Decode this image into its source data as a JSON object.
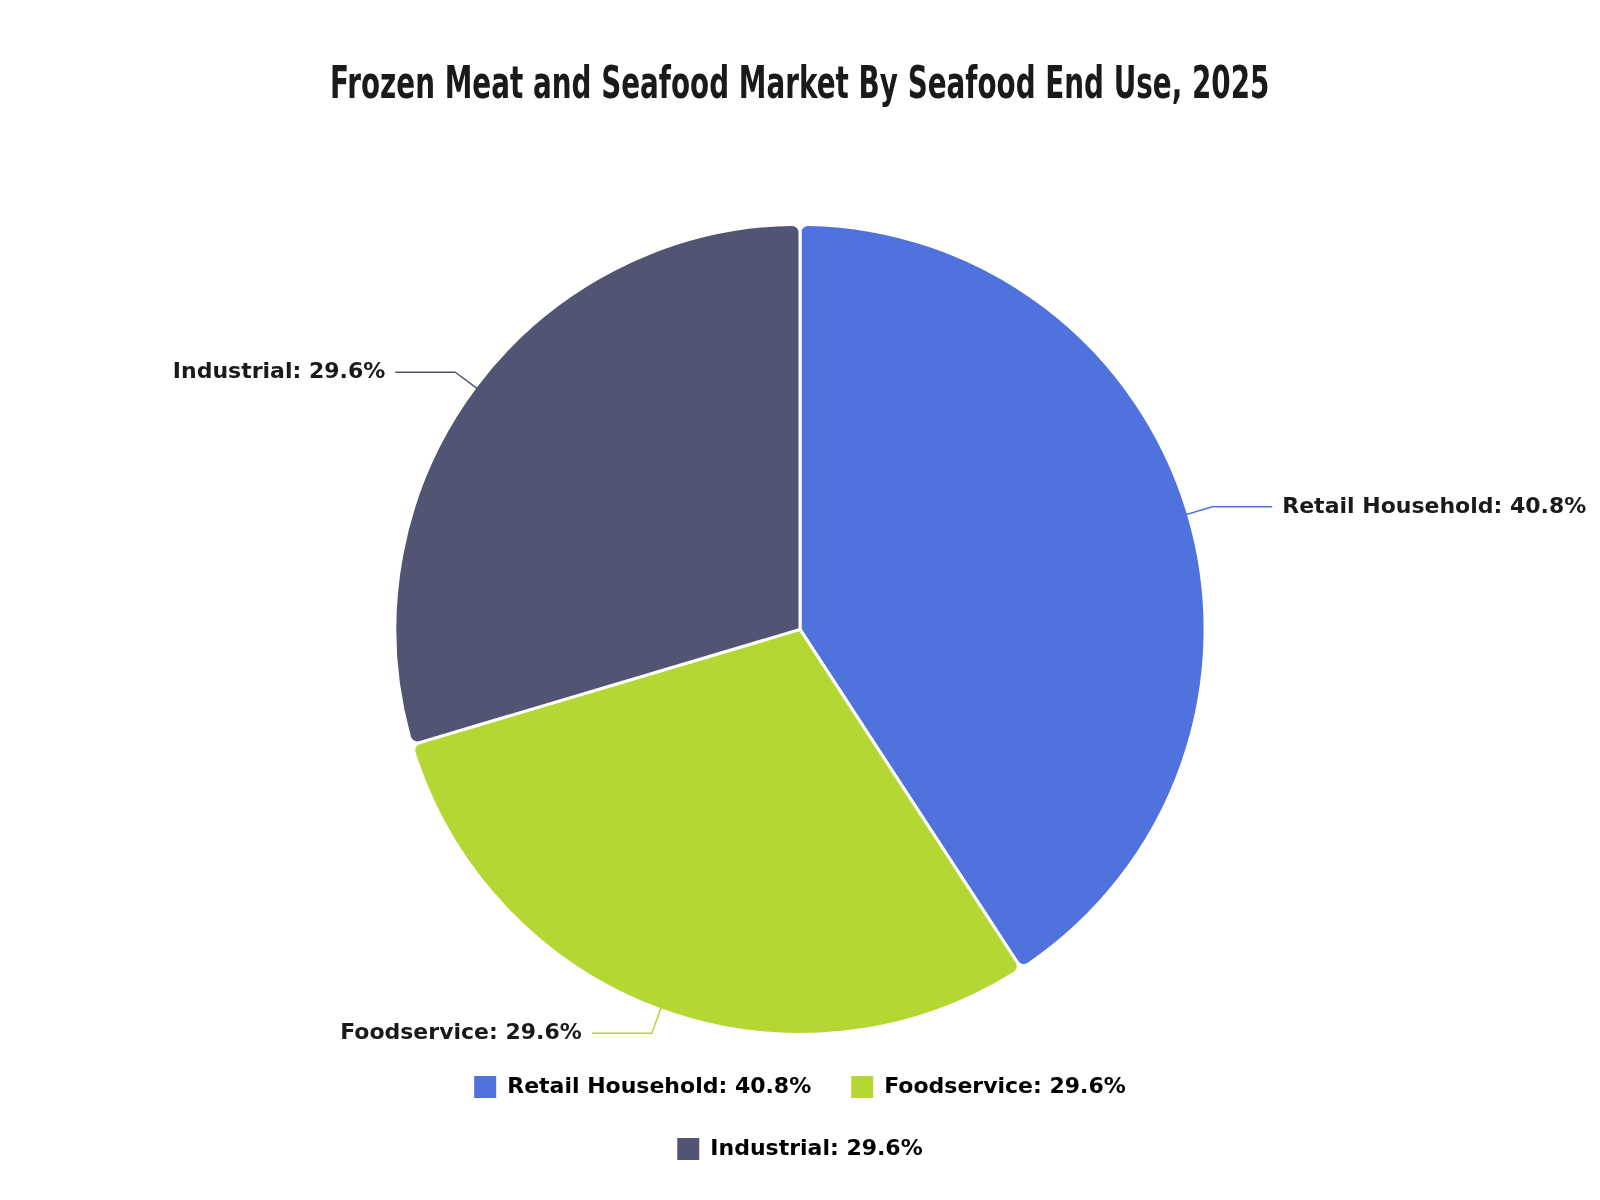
{
  "chart_data": {
    "type": "pie",
    "title": "Frozen Meat and Seafood Market By Seafood End Use, 2025",
    "categories": [
      "Retail Household",
      "Foodservice",
      "Industrial"
    ],
    "values": [
      40.8,
      29.6,
      29.6
    ],
    "value_labels": [
      "40.8%",
      "29.6%",
      "29.6%"
    ],
    "colors": [
      "#5072dd",
      "#b5d733",
      "#515473"
    ],
    "legend": "bottom"
  }
}
